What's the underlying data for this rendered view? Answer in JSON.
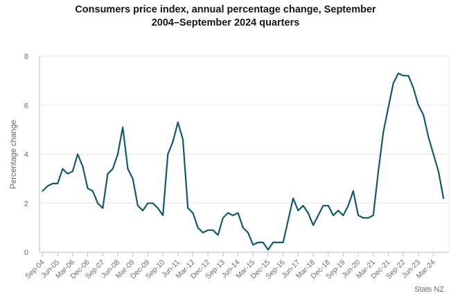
{
  "header": {
    "title_line1": "Consumers price index, annual percentage change, September",
    "title_line2": "2004–September 2024 quarters"
  },
  "colors": {
    "line": "#0f5872",
    "grid": "#e8e8e8",
    "axis": "#c3cade",
    "tick_text": "#6b6b6b",
    "title_text": "#161616",
    "background": "#ffffff"
  },
  "chart_data": {
    "type": "line",
    "title": "Consumers price index, annual percentage change, September 2004–September 2024 quarters",
    "xlabel": "",
    "ylabel": "Percentage change",
    "source": "Stats NZ",
    "ylim": [
      0,
      8
    ],
    "yticks": [
      0,
      2,
      4,
      6,
      8
    ],
    "x_label_every": 3,
    "grid": "horizontal",
    "legend": "none",
    "categories": [
      "Sep-04",
      "Dec-04",
      "Mar-05",
      "Jun-05",
      "Sep-05",
      "Dec-05",
      "Mar-06",
      "Jun-06",
      "Sep-06",
      "Dec-06",
      "Mar-07",
      "Jun-07",
      "Sep-07",
      "Dec-07",
      "Mar-08",
      "Jun-08",
      "Sep-08",
      "Dec-08",
      "Mar-09",
      "Jun-09",
      "Sep-09",
      "Dec-09",
      "Mar-10",
      "Jun-10",
      "Sep-10",
      "Dec-10",
      "Mar-11",
      "Jun-11",
      "Sep-11",
      "Dec-11",
      "Mar-12",
      "Jun-12",
      "Sep-12",
      "Dec-12",
      "Mar-13",
      "Jun-13",
      "Sep-13",
      "Dec-13",
      "Mar-14",
      "Jun-14",
      "Sep-14",
      "Dec-14",
      "Mar-15",
      "Jun-15",
      "Sep-15",
      "Dec-15",
      "Mar-16",
      "Jun-16",
      "Sep-16",
      "Dec-16",
      "Mar-17",
      "Jun-17",
      "Sep-17",
      "Dec-17",
      "Mar-18",
      "Jun-18",
      "Sep-18",
      "Dec-18",
      "Mar-19",
      "Jun-19",
      "Sep-19",
      "Dec-19",
      "Mar-20",
      "Jun-20",
      "Sep-20",
      "Dec-20",
      "Mar-21",
      "Jun-21",
      "Sep-21",
      "Dec-21",
      "Mar-22",
      "Jun-22",
      "Sep-22",
      "Dec-22",
      "Mar-23",
      "Jun-23",
      "Sep-23",
      "Dec-23",
      "Mar-24",
      "Jun-24",
      "Sep-24"
    ],
    "series": [
      {
        "name": "Consumers price index annual percentage change",
        "color": "#0f5872",
        "values": [
          2.5,
          2.7,
          2.8,
          2.8,
          3.4,
          3.2,
          3.3,
          4.0,
          3.5,
          2.6,
          2.5,
          2.0,
          1.8,
          3.2,
          3.4,
          4.0,
          5.1,
          3.4,
          3.0,
          1.9,
          1.7,
          2.0,
          2.0,
          1.8,
          1.5,
          4.0,
          4.5,
          5.3,
          4.6,
          1.8,
          1.6,
          1.0,
          0.8,
          0.9,
          0.9,
          0.7,
          1.4,
          1.6,
          1.5,
          1.6,
          1.0,
          0.8,
          0.3,
          0.4,
          0.4,
          0.1,
          0.4,
          0.4,
          0.4,
          1.3,
          2.2,
          1.7,
          1.9,
          1.6,
          1.1,
          1.5,
          1.9,
          1.9,
          1.5,
          1.7,
          1.5,
          1.9,
          2.5,
          1.5,
          1.4,
          1.4,
          1.5,
          3.3,
          4.9,
          5.9,
          6.9,
          7.3,
          7.2,
          7.2,
          6.7,
          6.0,
          5.6,
          4.7,
          4.0,
          3.3,
          2.2
        ]
      }
    ]
  }
}
